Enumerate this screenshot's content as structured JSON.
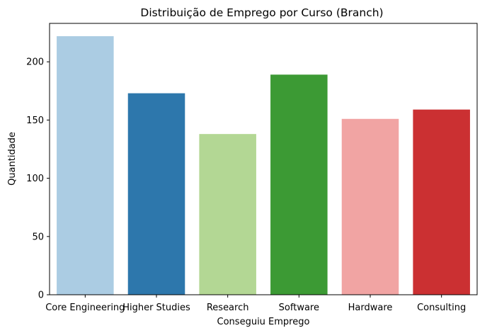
{
  "chart_data": {
    "type": "bar",
    "title": "Distribuição de Emprego por Curso (Branch)",
    "xlabel": "Conseguiu Emprego",
    "ylabel": "Quantidade",
    "categories": [
      "Core Engineering",
      "Higher Studies",
      "Research",
      "Software",
      "Hardware",
      "Consulting"
    ],
    "values": [
      222,
      173,
      138,
      189,
      151,
      159
    ],
    "colors": [
      "#abcce3",
      "#2d77ac",
      "#b3d794",
      "#3c9a34",
      "#f1a4a3",
      "#cb3032"
    ],
    "ylim": [
      0,
      233
    ],
    "yticks": [
      0,
      50,
      100,
      150,
      200
    ],
    "grid": false,
    "legend": "none"
  }
}
